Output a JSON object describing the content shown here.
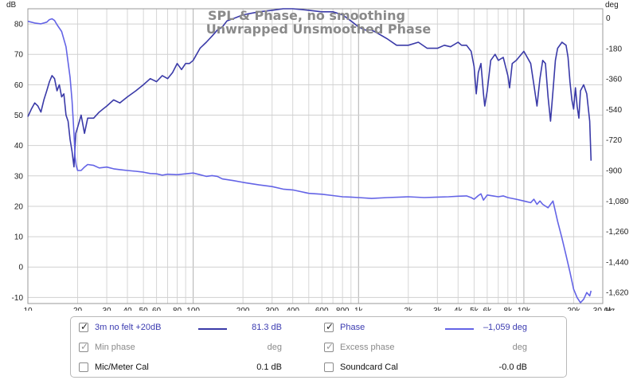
{
  "chart_data": {
    "type": "line",
    "title": "SPL & Phase, no smoothing",
    "subtitle": "Unwrapped Unsmoothed Phase",
    "x_unit": "Hz",
    "y_left_unit": "dB",
    "y_right_unit": "deg",
    "x_scale": "log",
    "xlim": [
      10,
      30000
    ],
    "ylim_left": [
      -12,
      85
    ],
    "ylim_right": [
      -1685,
      54
    ],
    "grid": true,
    "x_ticks": [
      {
        "v": 10,
        "t": "10"
      },
      {
        "v": 20,
        "t": "20"
      },
      {
        "v": 30,
        "t": "30"
      },
      {
        "v": 40,
        "t": "40"
      },
      {
        "v": 50,
        "t": "50"
      },
      {
        "v": 60,
        "t": "60"
      },
      {
        "v": 80,
        "t": "80"
      },
      {
        "v": 100,
        "t": "100"
      },
      {
        "v": 200,
        "t": "200"
      },
      {
        "v": 300,
        "t": "300"
      },
      {
        "v": 400,
        "t": "400"
      },
      {
        "v": 600,
        "t": "600"
      },
      {
        "v": 800,
        "t": "800"
      },
      {
        "v": 1000,
        "t": "1k"
      },
      {
        "v": 2000,
        "t": "2k"
      },
      {
        "v": 3000,
        "t": "3k"
      },
      {
        "v": 4000,
        "t": "4k"
      },
      {
        "v": 5000,
        "t": "5k"
      },
      {
        "v": 6000,
        "t": "6k"
      },
      {
        "v": 8000,
        "t": "8k"
      },
      {
        "v": 10000,
        "t": "10k"
      },
      {
        "v": 20000,
        "t": "20k"
      },
      {
        "v": 30000,
        "t": "30.0k"
      }
    ],
    "y_left_ticks": [
      {
        "v": 80,
        "t": "80"
      },
      {
        "v": 70,
        "t": "70"
      },
      {
        "v": 60,
        "t": "60"
      },
      {
        "v": 50,
        "t": "50"
      },
      {
        "v": 40,
        "t": "40"
      },
      {
        "v": 30,
        "t": "30"
      },
      {
        "v": 20,
        "t": "20"
      },
      {
        "v": 10,
        "t": "10"
      },
      {
        "v": 0,
        "t": "0"
      },
      {
        "v": -10,
        "t": "-10"
      }
    ],
    "y_right_ticks": [
      {
        "v": 0,
        "t": "0"
      },
      {
        "v": -180,
        "t": "-180"
      },
      {
        "v": -360,
        "t": "-360"
      },
      {
        "v": -540,
        "t": "-540"
      },
      {
        "v": -720,
        "t": "-720"
      },
      {
        "v": -900,
        "t": "-900"
      },
      {
        "v": -1080,
        "t": "-1,080"
      },
      {
        "v": -1260,
        "t": "-1,260"
      },
      {
        "v": -1440,
        "t": "-1,440"
      },
      {
        "v": -1620,
        "t": "-1,620"
      }
    ],
    "series": [
      {
        "name": "3m no felt +20dB",
        "axis": "left",
        "color": "#3a3aa8",
        "points": [
          [
            10,
            49.5
          ],
          [
            10.5,
            52
          ],
          [
            11,
            54
          ],
          [
            11.5,
            53
          ],
          [
            12,
            51
          ],
          [
            12.5,
            55
          ],
          [
            13,
            58
          ],
          [
            13.5,
            61
          ],
          [
            14,
            63
          ],
          [
            14.5,
            62
          ],
          [
            15,
            58
          ],
          [
            15.5,
            60
          ],
          [
            16,
            56
          ],
          [
            16.5,
            57
          ],
          [
            17,
            50
          ],
          [
            17.5,
            48
          ],
          [
            18,
            42
          ],
          [
            18.5,
            38
          ],
          [
            19,
            33
          ],
          [
            19.5,
            44
          ],
          [
            20,
            46
          ],
          [
            21,
            50
          ],
          [
            22,
            44
          ],
          [
            23,
            49
          ],
          [
            25,
            49
          ],
          [
            27,
            51
          ],
          [
            30,
            53
          ],
          [
            33,
            55
          ],
          [
            36,
            54
          ],
          [
            40,
            56
          ],
          [
            45,
            58
          ],
          [
            50,
            60
          ],
          [
            55,
            62
          ],
          [
            60,
            61
          ],
          [
            65,
            63
          ],
          [
            70,
            62
          ],
          [
            75,
            64
          ],
          [
            80,
            67
          ],
          [
            85,
            65
          ],
          [
            90,
            67
          ],
          [
            95,
            67
          ],
          [
            100,
            68
          ],
          [
            110,
            72
          ],
          [
            120,
            74
          ],
          [
            130,
            76
          ],
          [
            140,
            78
          ],
          [
            150,
            79
          ],
          [
            160,
            81
          ],
          [
            180,
            82
          ],
          [
            200,
            83
          ],
          [
            250,
            84
          ],
          [
            300,
            84.5
          ],
          [
            350,
            85
          ],
          [
            400,
            85
          ],
          [
            500,
            84.5
          ],
          [
            600,
            84
          ],
          [
            700,
            84
          ],
          [
            800,
            83
          ],
          [
            900,
            81
          ],
          [
            1000,
            79
          ],
          [
            1100,
            78
          ],
          [
            1200,
            78
          ],
          [
            1300,
            77
          ],
          [
            1500,
            75
          ],
          [
            1700,
            73
          ],
          [
            2000,
            73
          ],
          [
            2300,
            74
          ],
          [
            2600,
            72
          ],
          [
            3000,
            72
          ],
          [
            3300,
            73
          ],
          [
            3600,
            72.5
          ],
          [
            4000,
            74
          ],
          [
            4200,
            73
          ],
          [
            4500,
            73
          ],
          [
            4800,
            71
          ],
          [
            5000,
            66
          ],
          [
            5150,
            57
          ],
          [
            5300,
            64
          ],
          [
            5500,
            67
          ],
          [
            5700,
            57
          ],
          [
            5800,
            53
          ],
          [
            6000,
            58
          ],
          [
            6300,
            68
          ],
          [
            6700,
            70
          ],
          [
            7000,
            68
          ],
          [
            7500,
            69
          ],
          [
            8000,
            63
          ],
          [
            8200,
            59
          ],
          [
            8500,
            67
          ],
          [
            9000,
            68
          ],
          [
            10000,
            71
          ],
          [
            11000,
            67
          ],
          [
            11500,
            60
          ],
          [
            12000,
            53
          ],
          [
            12500,
            62
          ],
          [
            13000,
            68
          ],
          [
            13500,
            67
          ],
          [
            14000,
            56
          ],
          [
            14500,
            48
          ],
          [
            15000,
            58
          ],
          [
            15500,
            68
          ],
          [
            16000,
            72
          ],
          [
            17000,
            74
          ],
          [
            18000,
            73
          ],
          [
            18500,
            69
          ],
          [
            19000,
            61
          ],
          [
            19500,
            55
          ],
          [
            20000,
            52
          ],
          [
            20500,
            59
          ],
          [
            21000,
            53
          ],
          [
            21500,
            49
          ],
          [
            22000,
            58
          ],
          [
            23000,
            60
          ],
          [
            24000,
            57
          ],
          [
            25000,
            48
          ],
          [
            25500,
            35
          ]
        ]
      },
      {
        "name": "Phase",
        "axis": "right",
        "color": "#6464e6",
        "points": [
          [
            10,
            -20
          ],
          [
            11,
            -30
          ],
          [
            12,
            -35
          ],
          [
            13,
            -25
          ],
          [
            13.5,
            -10
          ],
          [
            14,
            -5
          ],
          [
            14.5,
            -15
          ],
          [
            15,
            -40
          ],
          [
            16,
            -80
          ],
          [
            17,
            -170
          ],
          [
            18,
            -350
          ],
          [
            18.5,
            -490
          ],
          [
            19,
            -680
          ],
          [
            19.3,
            -820
          ],
          [
            19.6,
            -870
          ],
          [
            20,
            -900
          ],
          [
            21,
            -900
          ],
          [
            22,
            -880
          ],
          [
            23,
            -865
          ],
          [
            25,
            -870
          ],
          [
            27,
            -885
          ],
          [
            30,
            -880
          ],
          [
            33,
            -890
          ],
          [
            36,
            -895
          ],
          [
            40,
            -900
          ],
          [
            45,
            -905
          ],
          [
            50,
            -910
          ],
          [
            55,
            -918
          ],
          [
            60,
            -920
          ],
          [
            65,
            -928
          ],
          [
            70,
            -922
          ],
          [
            80,
            -925
          ],
          [
            90,
            -920
          ],
          [
            100,
            -915
          ],
          [
            110,
            -925
          ],
          [
            120,
            -935
          ],
          [
            130,
            -930
          ],
          [
            140,
            -935
          ],
          [
            150,
            -950
          ],
          [
            175,
            -960
          ],
          [
            200,
            -970
          ],
          [
            250,
            -985
          ],
          [
            300,
            -995
          ],
          [
            350,
            -1010
          ],
          [
            400,
            -1015
          ],
          [
            500,
            -1035
          ],
          [
            600,
            -1040
          ],
          [
            700,
            -1048
          ],
          [
            800,
            -1055
          ],
          [
            900,
            -1057
          ],
          [
            1000,
            -1060
          ],
          [
            1200,
            -1065
          ],
          [
            1500,
            -1060
          ],
          [
            2000,
            -1055
          ],
          [
            2500,
            -1060
          ],
          [
            3000,
            -1057
          ],
          [
            3500,
            -1055
          ],
          [
            4000,
            -1052
          ],
          [
            4500,
            -1050
          ],
          [
            4800,
            -1060
          ],
          [
            5000,
            -1070
          ],
          [
            5300,
            -1048
          ],
          [
            5500,
            -1038
          ],
          [
            5700,
            -1075
          ],
          [
            6000,
            -1045
          ],
          [
            6500,
            -1050
          ],
          [
            7000,
            -1055
          ],
          [
            7500,
            -1050
          ],
          [
            8000,
            -1060
          ],
          [
            9000,
            -1070
          ],
          [
            10000,
            -1080
          ],
          [
            11000,
            -1090
          ],
          [
            11500,
            -1070
          ],
          [
            12000,
            -1100
          ],
          [
            12500,
            -1080
          ],
          [
            13000,
            -1100
          ],
          [
            14000,
            -1120
          ],
          [
            14500,
            -1100
          ],
          [
            15000,
            -1080
          ],
          [
            16000,
            -1200
          ],
          [
            17000,
            -1300
          ],
          [
            18000,
            -1400
          ],
          [
            19000,
            -1500
          ],
          [
            20000,
            -1600
          ],
          [
            21000,
            -1650
          ],
          [
            22000,
            -1680
          ],
          [
            23000,
            -1660
          ],
          [
            24000,
            -1620
          ],
          [
            25000,
            -1640
          ],
          [
            25500,
            -1610
          ]
        ]
      }
    ]
  },
  "legend": {
    "rows": [
      {
        "checked": true,
        "disabled": false,
        "label": "3m no felt +20dB",
        "swatch": "#3a3aa8",
        "value": "81.3 dB",
        "label_color": "blue",
        "value_color": "blue"
      },
      {
        "checked": true,
        "disabled": false,
        "label": "Phase",
        "swatch": "#6464e6",
        "value": "–1,059 deg",
        "label_color": "blue",
        "value_color": "blue"
      },
      {
        "checked": true,
        "disabled": true,
        "label": "Min phase",
        "swatch": "",
        "value": "deg",
        "label_color": "gray",
        "value_color": "gray"
      },
      {
        "checked": true,
        "disabled": true,
        "label": "Excess phase",
        "swatch": "",
        "value": "deg",
        "label_color": "gray",
        "value_color": "gray"
      },
      {
        "checked": false,
        "disabled": false,
        "label": "Mic/Meter Cal",
        "swatch": "",
        "value": "0.1 dB",
        "label_color": "black",
        "value_color": "black"
      },
      {
        "checked": false,
        "disabled": false,
        "label": "Soundcard Cal",
        "swatch": "",
        "value": "-0.0 dB",
        "label_color": "black",
        "value_color": "black"
      }
    ]
  }
}
